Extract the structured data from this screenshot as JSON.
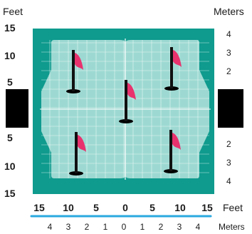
{
  "units": {
    "left": "Feet",
    "right": "Meters",
    "bottom_feet": "Feet",
    "bottom_meters": "Meters"
  },
  "left_feet_ticks_top": [
    "15",
    "10",
    "5"
  ],
  "left_feet_ticks_bottom": [
    "5",
    "10",
    "15"
  ],
  "right_meter_ticks_top": [
    "4",
    "3",
    "2"
  ],
  "right_meter_ticks_bottom": [
    "2",
    "3",
    "4"
  ],
  "bottom_feet_ticks": [
    "15",
    "10",
    "5",
    "0",
    "5",
    "10",
    "15"
  ],
  "bottom_meter_ticks": [
    "4",
    "3",
    "2",
    "1",
    "0",
    "1",
    "2",
    "3",
    "4"
  ],
  "flags": [
    {
      "name": "top-left"
    },
    {
      "name": "top-right"
    },
    {
      "name": "center"
    },
    {
      "name": "bottom-left"
    },
    {
      "name": "bottom-right"
    }
  ],
  "colors": {
    "field": "#0f9b8e",
    "zone": "#a9ded8",
    "grid": "#ffffff",
    "flag": "#e8326e",
    "pole": "#111111",
    "stand": "#000000",
    "meter_rule": "#2aa9e0"
  }
}
